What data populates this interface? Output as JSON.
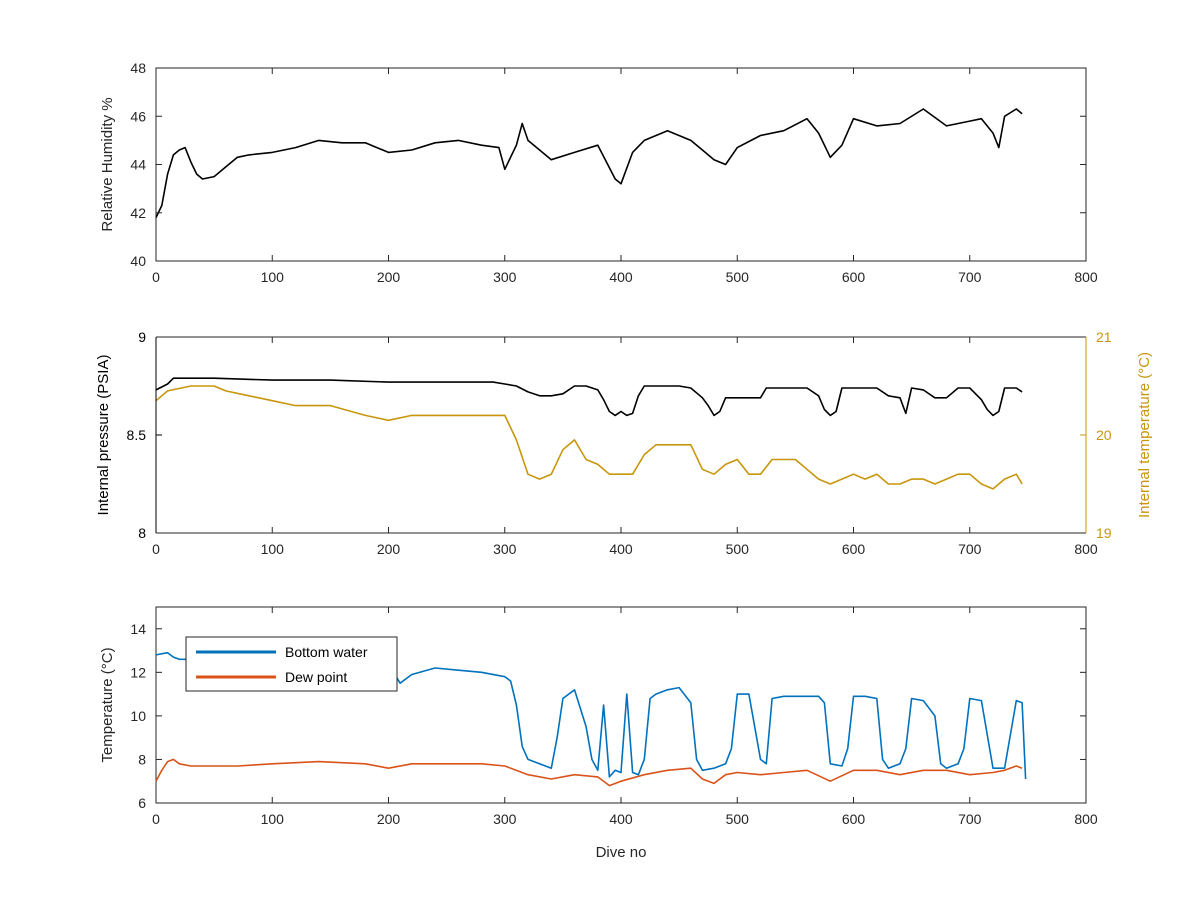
{
  "colors": {
    "axes": "#262626",
    "black_series": "#000000",
    "bottom_water": "#0072BD",
    "dew_point": "#D95319",
    "internal_temp": "#C8960C"
  },
  "chart_data": [
    {
      "type": "line",
      "xlabel": "",
      "ylabel": "Relative Humidity %",
      "xlim": [
        0,
        800
      ],
      "ylim": [
        40,
        48
      ],
      "xticks": [
        0,
        100,
        200,
        300,
        400,
        500,
        600,
        700,
        800
      ],
      "yticks": [
        40,
        42,
        44,
        46,
        48
      ],
      "grid": false,
      "series": [
        {
          "color": "#000000",
          "x": [
            0,
            5,
            10,
            15,
            20,
            25,
            30,
            35,
            40,
            50,
            60,
            70,
            80,
            100,
            120,
            140,
            160,
            180,
            200,
            220,
            240,
            260,
            280,
            295,
            300,
            310,
            315,
            320,
            340,
            360,
            380,
            395,
            400,
            410,
            420,
            440,
            460,
            470,
            480,
            490,
            500,
            520,
            540,
            560,
            570,
            580,
            590,
            600,
            620,
            640,
            660,
            680,
            700,
            710,
            720,
            725,
            730,
            740,
            745
          ],
          "y": [
            41.8,
            42.3,
            43.6,
            44.4,
            44.6,
            44.7,
            44.1,
            43.6,
            43.4,
            43.5,
            43.9,
            44.3,
            44.4,
            44.5,
            44.7,
            45.0,
            44.9,
            44.9,
            44.5,
            44.6,
            44.9,
            45.0,
            44.8,
            44.7,
            43.8,
            44.8,
            45.7,
            45.0,
            44.2,
            44.5,
            44.8,
            43.4,
            43.2,
            44.5,
            45.0,
            45.4,
            45.0,
            44.6,
            44.2,
            44.0,
            44.7,
            45.2,
            45.4,
            45.9,
            45.3,
            44.3,
            44.8,
            45.9,
            45.6,
            45.7,
            46.3,
            45.6,
            45.8,
            45.9,
            45.3,
            44.7,
            46.0,
            46.3,
            46.1
          ]
        }
      ]
    },
    {
      "type": "line",
      "xlabel": "",
      "ylabel": "Internal pressure (PSIA)",
      "y2label": "Internal temperature (°C)",
      "xlim": [
        0,
        800
      ],
      "ylim": [
        8,
        9
      ],
      "y2lim": [
        19,
        21
      ],
      "xticks": [
        0,
        100,
        200,
        300,
        400,
        500,
        600,
        700,
        800
      ],
      "yticks": [
        8,
        8.5,
        9
      ],
      "y2ticks": [
        19,
        20,
        21
      ],
      "grid": false,
      "series": [
        {
          "axis": "left",
          "color": "#000000",
          "x": [
            0,
            10,
            15,
            50,
            100,
            150,
            200,
            250,
            290,
            300,
            310,
            320,
            330,
            340,
            350,
            360,
            370,
            380,
            385,
            390,
            395,
            400,
            405,
            410,
            415,
            420,
            430,
            440,
            450,
            460,
            470,
            475,
            480,
            485,
            490,
            500,
            510,
            520,
            525,
            530,
            560,
            570,
            575,
            580,
            585,
            590,
            600,
            620,
            630,
            640,
            645,
            650,
            660,
            670,
            680,
            690,
            700,
            710,
            715,
            720,
            725,
            730,
            740,
            745
          ],
          "y": [
            8.73,
            8.76,
            8.79,
            8.79,
            8.78,
            8.78,
            8.77,
            8.77,
            8.77,
            8.76,
            8.75,
            8.72,
            8.7,
            8.7,
            8.71,
            8.75,
            8.75,
            8.73,
            8.68,
            8.62,
            8.6,
            8.62,
            8.6,
            8.61,
            8.7,
            8.75,
            8.75,
            8.75,
            8.75,
            8.74,
            8.69,
            8.65,
            8.6,
            8.62,
            8.69,
            8.69,
            8.69,
            8.69,
            8.74,
            8.74,
            8.74,
            8.7,
            8.63,
            8.6,
            8.62,
            8.74,
            8.74,
            8.74,
            8.7,
            8.69,
            8.61,
            8.74,
            8.73,
            8.69,
            8.69,
            8.74,
            8.74,
            8.68,
            8.63,
            8.6,
            8.62,
            8.74,
            8.74,
            8.72
          ]
        },
        {
          "axis": "right",
          "color": "#C8960C",
          "x": [
            0,
            10,
            30,
            50,
            60,
            80,
            100,
            120,
            150,
            180,
            200,
            220,
            250,
            280,
            300,
            310,
            320,
            330,
            340,
            350,
            360,
            370,
            380,
            390,
            400,
            410,
            420,
            430,
            440,
            450,
            460,
            470,
            480,
            490,
            500,
            510,
            520,
            530,
            540,
            550,
            560,
            570,
            580,
            590,
            600,
            610,
            620,
            630,
            640,
            650,
            660,
            670,
            680,
            690,
            700,
            710,
            720,
            730,
            740,
            745
          ],
          "y": [
            20.35,
            20.45,
            20.5,
            20.5,
            20.45,
            20.4,
            20.35,
            20.3,
            20.3,
            20.2,
            20.15,
            20.2,
            20.2,
            20.2,
            20.2,
            19.95,
            19.6,
            19.55,
            19.6,
            19.85,
            19.95,
            19.75,
            19.7,
            19.6,
            19.6,
            19.6,
            19.8,
            19.9,
            19.9,
            19.9,
            19.9,
            19.65,
            19.6,
            19.7,
            19.75,
            19.6,
            19.6,
            19.75,
            19.75,
            19.75,
            19.65,
            19.55,
            19.5,
            19.55,
            19.6,
            19.55,
            19.6,
            19.5,
            19.5,
            19.55,
            19.55,
            19.5,
            19.55,
            19.6,
            19.6,
            19.5,
            19.45,
            19.55,
            19.6,
            19.5
          ]
        }
      ]
    },
    {
      "type": "line",
      "xlabel": "Dive no",
      "ylabel": "Temperature (°C)",
      "xlim": [
        0,
        800
      ],
      "ylim": [
        6,
        15
      ],
      "xticks": [
        0,
        100,
        200,
        300,
        400,
        500,
        600,
        700,
        800
      ],
      "yticks": [
        6,
        8,
        10,
        12,
        14
      ],
      "grid": false,
      "legend_position": "top-left",
      "series": [
        {
          "name": "Bottom water",
          "color": "#0072BD",
          "x": [
            0,
            10,
            15,
            20,
            100,
            200,
            210,
            220,
            240,
            260,
            280,
            300,
            305,
            310,
            315,
            320,
            330,
            340,
            345,
            350,
            360,
            370,
            375,
            380,
            385,
            390,
            395,
            400,
            405,
            410,
            415,
            420,
            425,
            430,
            440,
            450,
            460,
            465,
            470,
            480,
            490,
            495,
            500,
            510,
            520,
            525,
            530,
            540,
            550,
            560,
            570,
            575,
            580,
            590,
            595,
            600,
            610,
            620,
            625,
            630,
            640,
            645,
            650,
            660,
            670,
            675,
            680,
            690,
            695,
            700,
            710,
            720,
            725,
            730,
            740,
            745,
            748
          ],
          "y": [
            12.8,
            12.9,
            12.7,
            12.6,
            12.6,
            12.4,
            11.5,
            11.9,
            12.2,
            12.1,
            12.0,
            11.8,
            11.6,
            10.5,
            8.6,
            8.0,
            7.8,
            7.6,
            9.0,
            10.8,
            11.2,
            9.5,
            8.0,
            7.5,
            10.5,
            7.2,
            7.5,
            7.4,
            11.0,
            7.4,
            7.3,
            8.0,
            10.8,
            11.0,
            11.2,
            11.3,
            10.6,
            8.0,
            7.5,
            7.6,
            7.8,
            8.5,
            11.0,
            11.0,
            8.0,
            7.8,
            10.8,
            10.9,
            10.9,
            10.9,
            10.9,
            10.6,
            7.8,
            7.7,
            8.5,
            10.9,
            10.9,
            10.8,
            8.0,
            7.6,
            7.8,
            8.5,
            10.8,
            10.7,
            10.0,
            7.8,
            7.6,
            7.8,
            8.5,
            10.8,
            10.7,
            7.6,
            7.6,
            7.6,
            10.7,
            10.6,
            7.1
          ]
        },
        {
          "name": "Dew point",
          "color": "#D95319",
          "x": [
            0,
            5,
            10,
            15,
            20,
            30,
            50,
            70,
            100,
            140,
            180,
            200,
            220,
            250,
            280,
            300,
            320,
            340,
            360,
            380,
            390,
            400,
            420,
            440,
            460,
            470,
            480,
            490,
            500,
            520,
            540,
            560,
            580,
            600,
            620,
            640,
            660,
            680,
            700,
            720,
            730,
            740,
            745
          ],
          "y": [
            7.0,
            7.5,
            7.9,
            8.0,
            7.8,
            7.7,
            7.7,
            7.7,
            7.8,
            7.9,
            7.8,
            7.6,
            7.8,
            7.8,
            7.8,
            7.7,
            7.3,
            7.1,
            7.3,
            7.2,
            6.8,
            7.0,
            7.3,
            7.5,
            7.6,
            7.1,
            6.9,
            7.3,
            7.4,
            7.3,
            7.4,
            7.5,
            7.0,
            7.5,
            7.5,
            7.3,
            7.5,
            7.5,
            7.3,
            7.4,
            7.5,
            7.7,
            7.6
          ]
        }
      ]
    }
  ]
}
